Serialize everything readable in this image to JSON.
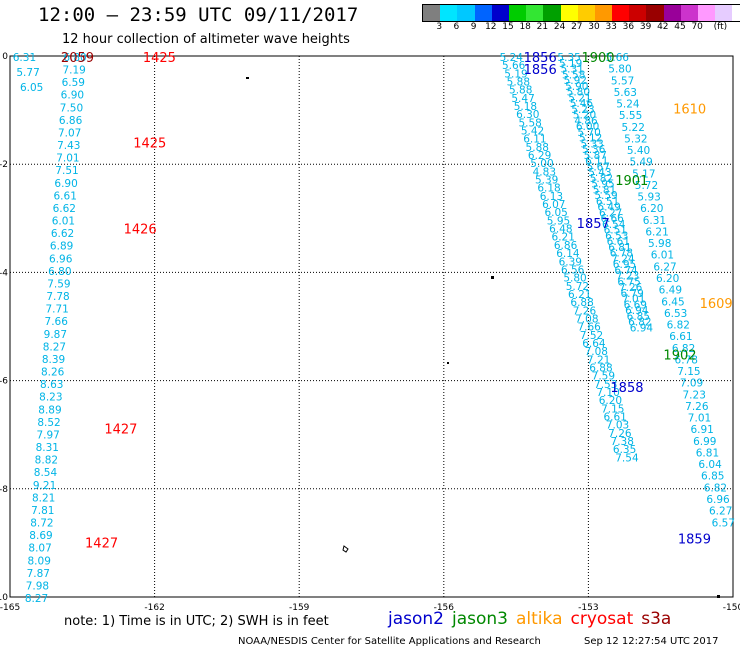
{
  "header": {
    "title": "12:00 – 23:59 UTC 09/11/2017",
    "subtitle": "12 hour collection of altimeter wave heights"
  },
  "colorbar": {
    "colors": [
      "#7f7f7f",
      "#00e5ff",
      "#00c8ff",
      "#0064ff",
      "#0000cc",
      "#00cc00",
      "#33e633",
      "#00a000",
      "#ffff00",
      "#ffcc00",
      "#ff9900",
      "#ff0000",
      "#cc0000",
      "#990000",
      "#990099",
      "#cc33cc",
      "#ff99ff",
      "#e6ccff",
      "#ffffff",
      "#000000"
    ],
    "labels": [
      "3",
      "6",
      "9",
      "12",
      "15",
      "18",
      "21",
      "24",
      "27",
      "30",
      "33",
      "36",
      "39",
      "42",
      "45",
      "70",
      "(ft)"
    ]
  },
  "chart_data": {
    "type": "scatter",
    "title": "12 hour collection of altimeter wave heights",
    "xlim": [
      -165,
      -150
    ],
    "ylim": [
      -10,
      0
    ],
    "x_ticks": [
      "-165",
      "-162",
      "-159",
      "-156",
      "-153",
      "-150"
    ],
    "y_ticks": [
      "0",
      "-2",
      "-4",
      "-6",
      "-8",
      "-10"
    ],
    "units": "ft",
    "tracks": [
      {
        "satellite": "cryosat",
        "color": "#00b4e6",
        "x_start": -164.7,
        "y_start": 0.0,
        "x_end": -164.55,
        "y_end": -0.55,
        "values": [
          "6.31",
          "5.77",
          "6.05"
        ]
      },
      {
        "satellite": "jason3",
        "color": "#00b4e6",
        "x_start": -163.65,
        "y_start": 0.0,
        "x_end": -164.45,
        "y_end": -10.0,
        "values": [
          "6.80",
          "7.19",
          "6.59",
          "6.90",
          "7.50",
          "6.86",
          "7.07",
          "7.43",
          "7.01",
          "7.51",
          "6.90",
          "6.61",
          "6.62",
          "6.01",
          "6.62",
          "6.89",
          "6.96",
          "6.80",
          "7.59",
          "7.78",
          "7.71",
          "7.66",
          "9.87",
          "8.27",
          "8.39",
          "8.26",
          "8.63",
          "8.23",
          "8.89",
          "8.52",
          "7.97",
          "8.31",
          "8.82",
          "8.54",
          "9.21",
          "8.21",
          "7.81",
          "8.72",
          "8.69",
          "8.07",
          "8.09",
          "7.87",
          "7.98",
          "8.27"
        ]
      },
      {
        "satellite": "jason2",
        "color": "#00b4e6",
        "x_start": -154.6,
        "y_start": 0.0,
        "x_end": -152.2,
        "y_end": -7.4,
        "values": [
          "5.24",
          "5.66",
          "5.19",
          "5.88",
          "5.88",
          "5.47",
          "5.18",
          "6.30",
          "5.58",
          "5.42",
          "6.11",
          "5.88",
          "6.29",
          "5.00",
          "4.83",
          "5.39",
          "6.18",
          "6.13",
          "6.07",
          "6.05",
          "5.95",
          "6.48",
          "6.21",
          "6.86",
          "6.14",
          "6.39",
          "6.56",
          "5.80",
          "5.72",
          "6.21",
          "6.88",
          "7.26",
          "7.08",
          "7.66",
          "7.52",
          "6.64",
          "7.08",
          "7.21",
          "6.88",
          "7.59",
          "7.53",
          "7.10",
          "6.20",
          "7.15",
          "6.61",
          "7.03",
          "7.26",
          "7.38",
          "6.35",
          "7.54"
        ]
      },
      {
        "satellite": "altika",
        "color": "#00b4e6",
        "x_start": -153.4,
        "y_start": 0.0,
        "x_end": -151.9,
        "y_end": -5.0,
        "values": [
          "5.35",
          "5.19",
          "5.31",
          "5.58",
          "5.92",
          "5.90",
          "5.80",
          "5.21",
          "5.46",
          "5.23",
          "5.20",
          "4.86",
          "6.00",
          "5.70",
          "5.12",
          "5.33",
          "5.36",
          "5.87",
          "6.11",
          "5.67",
          "5.43",
          "5.82",
          "5.95",
          "5.81",
          "5.59",
          "6.51",
          "6.49",
          "6.27",
          "6.66",
          "6.54",
          "6.51",
          "6.53",
          "6.61",
          "6.81",
          "6.78",
          "7.24",
          "6.95",
          "6.74",
          "7.23",
          "6.75",
          "7.26",
          "6.79",
          "7.01",
          "6.69",
          "6.94",
          "6.85",
          "6.82",
          "6.94"
        ]
      },
      {
        "satellite": "s3a",
        "color": "#00b4e6",
        "x_start": -152.4,
        "y_start": 0.0,
        "x_end": -150.2,
        "y_end": -8.6,
        "values": [
          "5.66",
          "5.80",
          "5.57",
          "5.63",
          "5.24",
          "5.55",
          "5.22",
          "5.32",
          "5.40",
          "5.49",
          "5.17",
          "5.72",
          "5.93",
          "6.20",
          "6.31",
          "6.21",
          "5.98",
          "6.01",
          "6.27",
          "6.20",
          "6.49",
          "6.45",
          "6.53",
          "6.82",
          "6.61",
          "6.82",
          "6.78",
          "7.15",
          "7.09",
          "7.23",
          "7.26",
          "7.01",
          "6.91",
          "6.99",
          "6.81",
          "6.04",
          "6.85",
          "6.82",
          "6.96",
          "6.27",
          "6.57"
        ]
      }
    ],
    "time_labels": [
      {
        "text": "2059",
        "x": -163.6,
        "y": 0.0,
        "color": "#990000"
      },
      {
        "text": "1425",
        "x": -161.9,
        "y": 0.0,
        "color": "#ff0000"
      },
      {
        "text": "1425",
        "x": -162.1,
        "y": -1.58,
        "color": "#ff0000"
      },
      {
        "text": "1426",
        "x": -162.3,
        "y": -3.17,
        "color": "#ff0000"
      },
      {
        "text": "1427",
        "x": -162.7,
        "y": -6.87,
        "color": "#ff0000"
      },
      {
        "text": "1427",
        "x": -163.1,
        "y": -8.97,
        "color": "#ff0000"
      },
      {
        "text": "1856",
        "x": -154.0,
        "y": 0.0,
        "color": "#0000cc"
      },
      {
        "text": "1856",
        "x": -154.0,
        "y": -0.22,
        "color": "#0000cc"
      },
      {
        "text": "1857",
        "x": -152.9,
        "y": -3.07,
        "color": "#0000cc"
      },
      {
        "text": "1858",
        "x": -152.2,
        "y": -6.1,
        "color": "#0000cc"
      },
      {
        "text": "1859",
        "x": -150.8,
        "y": -8.9,
        "color": "#0000cc"
      },
      {
        "text": "1900",
        "x": -152.8,
        "y": 0.0,
        "color": "#008800"
      },
      {
        "text": "1901",
        "x": -152.1,
        "y": -2.27,
        "color": "#008800"
      },
      {
        "text": "1902",
        "x": -151.1,
        "y": -5.5,
        "color": "#008800"
      },
      {
        "text": "1610",
        "x": -150.9,
        "y": -0.95,
        "color": "#ff9900"
      },
      {
        "text": "1609",
        "x": -150.35,
        "y": -4.55,
        "color": "#ff9900"
      }
    ]
  },
  "note": "note:  1) Time is in UTC;  2) SWH is in feet",
  "legend": [
    {
      "name": "jason2",
      "color": "#0000cc"
    },
    {
      "name": "jason3",
      "color": "#008800"
    },
    {
      "name": "altika",
      "color": "#ff9900"
    },
    {
      "name": "cryosat",
      "color": "#ff0000"
    },
    {
      "name": "s3a",
      "color": "#990000"
    }
  ],
  "footer": {
    "credit": "NOAA/NESDIS Center for Satellite Applications and Research",
    "timestamp": "Sep 12 12:27:54 UTC 2017"
  }
}
